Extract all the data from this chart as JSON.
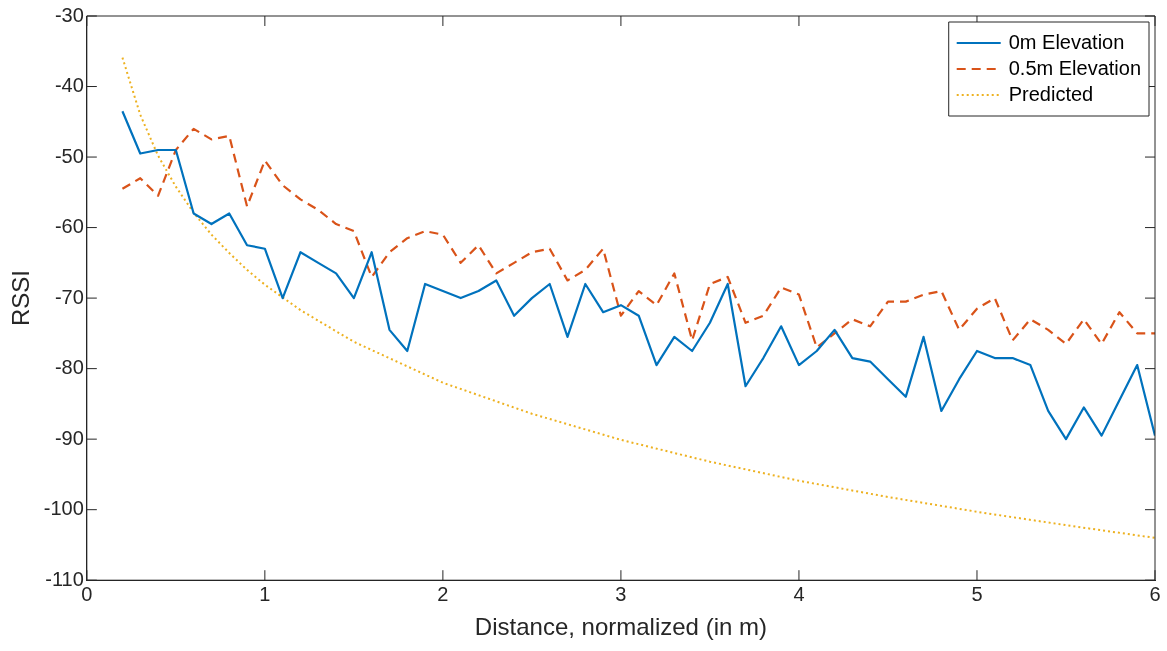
{
  "chart_data": {
    "type": "line",
    "xlabel": "Distance, normalized (in m)",
    "ylabel": "RSSI",
    "xlim": [
      0,
      6
    ],
    "xticks": [
      0,
      1,
      2,
      3,
      4,
      5,
      6
    ],
    "ylim": [
      -110,
      -30
    ],
    "yticks": [
      -110,
      -100,
      -90,
      -80,
      -70,
      -60,
      -50,
      -40,
      -30
    ],
    "grid": false,
    "legend": "top right",
    "marker": "none",
    "x": [
      0.2,
      0.3,
      0.4,
      0.5,
      0.6,
      0.7,
      0.8,
      0.9,
      1.0,
      1.1,
      1.2,
      1.3,
      1.4,
      1.5,
      1.6,
      1.7,
      1.8,
      1.9,
      2.0,
      2.1,
      2.2,
      2.3,
      2.4,
      2.5,
      2.6,
      2.7,
      2.8,
      2.9,
      3.0,
      3.1,
      3.2,
      3.3,
      3.4,
      3.5,
      3.6,
      3.7,
      3.8,
      3.9,
      4.0,
      4.1,
      4.2,
      4.3,
      4.4,
      4.5,
      4.6,
      4.7,
      4.8,
      4.9,
      5.0,
      5.1,
      5.2,
      5.3,
      5.4,
      5.5,
      5.6,
      5.7,
      5.8,
      5.9,
      6.0
    ],
    "series": [
      {
        "name": "0m Elevation",
        "color": "#0072bd",
        "line_style": "solid",
        "values": [
          -43.5,
          -49.5,
          -49,
          -49,
          -58,
          -59.5,
          -58,
          -62.5,
          -63,
          -70,
          -63.5,
          -65,
          -66.5,
          -70,
          -63.5,
          -74.5,
          -77.5,
          -68,
          -69,
          -70,
          -69,
          -67.5,
          -72.5,
          -70,
          -68,
          -75.5,
          -68,
          -72,
          -71,
          -72.5,
          -79.5,
          -75.5,
          -77.5,
          -73.5,
          -68,
          -82.5,
          -78.5,
          -74,
          -79.5,
          -77.5,
          -74.5,
          -78.5,
          -79,
          -81.5,
          -84,
          -75.5,
          -86,
          -81.5,
          -77.5,
          -78.5,
          -78.5,
          -79.5,
          -86,
          -90,
          -85.5,
          -89.5,
          -84.5,
          -79.5,
          -89.5
        ]
      },
      {
        "name": "0.5m Elevation",
        "color": "#d95319",
        "line_style": "dashed",
        "values": [
          -54.5,
          -53,
          -55.5,
          -49,
          -46,
          -47.5,
          -47,
          -57,
          -50.5,
          -54,
          -56,
          -57.5,
          -59.5,
          -60.5,
          -67,
          -63.5,
          -61.5,
          -60.5,
          -61,
          -65,
          -62.5,
          -66.5,
          -65,
          -63.5,
          -63,
          -67.5,
          -66,
          -63,
          -72.5,
          -69,
          -71,
          -66.5,
          -76,
          -68,
          -67,
          -73.5,
          -72.5,
          -68.5,
          -69.5,
          -77,
          -75,
          -73,
          -74,
          -70.5,
          -70.5,
          -69.5,
          -69,
          -74.5,
          -71.5,
          -70,
          -76,
          -73,
          -74.5,
          -76.5,
          -73,
          -76.5,
          -72,
          -75,
          -75
        ]
      },
      {
        "name": "Predicted",
        "color": "#edb120",
        "line_style": "dotted",
        "x": [
          0.2,
          0.3,
          0.4,
          0.5,
          0.6,
          0.7,
          0.8,
          0.9,
          1.0,
          1.2,
          1.5,
          2.0,
          2.5,
          3.0,
          3.5,
          4.0,
          4.5,
          5.0,
          5.5,
          6.0
        ],
        "values": [
          -35.9,
          -44.0,
          -49.8,
          -54.2,
          -57.9,
          -61.0,
          -63.6,
          -66.0,
          -68.1,
          -71.7,
          -76.2,
          -82.0,
          -86.4,
          -90.1,
          -93.2,
          -95.9,
          -98.2,
          -100.3,
          -102.2,
          -104.0
        ]
      }
    ]
  }
}
